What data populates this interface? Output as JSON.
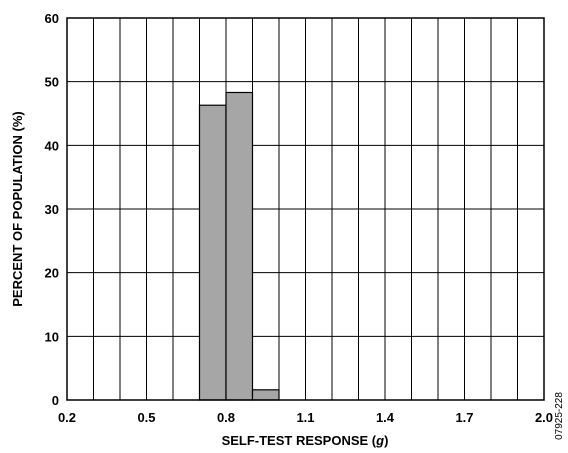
{
  "chart_data": {
    "type": "bar",
    "title": "",
    "xlabel_prefix": "SELF-TEST RESPONSE (",
    "xlabel_unit": "g",
    "xlabel_suffix": ")",
    "ylabel": "PERCENT OF POPULATION (%)",
    "xlim": [
      0.2,
      2.0
    ],
    "ylim": [
      0,
      60
    ],
    "grid": true,
    "x_tick_labels": [
      "0.2",
      "0.5",
      "0.8",
      "1.1",
      "1.4",
      "1.7",
      "2.0"
    ],
    "y_tick_labels": [
      "0",
      "10",
      "20",
      "30",
      "40",
      "50",
      "60"
    ],
    "bin_width": 0.1,
    "bins": [
      {
        "x_start": 0.7,
        "x_end": 0.8,
        "value": 46.3
      },
      {
        "x_start": 0.8,
        "x_end": 0.9,
        "value": 48.3
      },
      {
        "x_start": 0.9,
        "x_end": 1.0,
        "value": 1.6
      }
    ]
  },
  "figure_id": "07925-228"
}
